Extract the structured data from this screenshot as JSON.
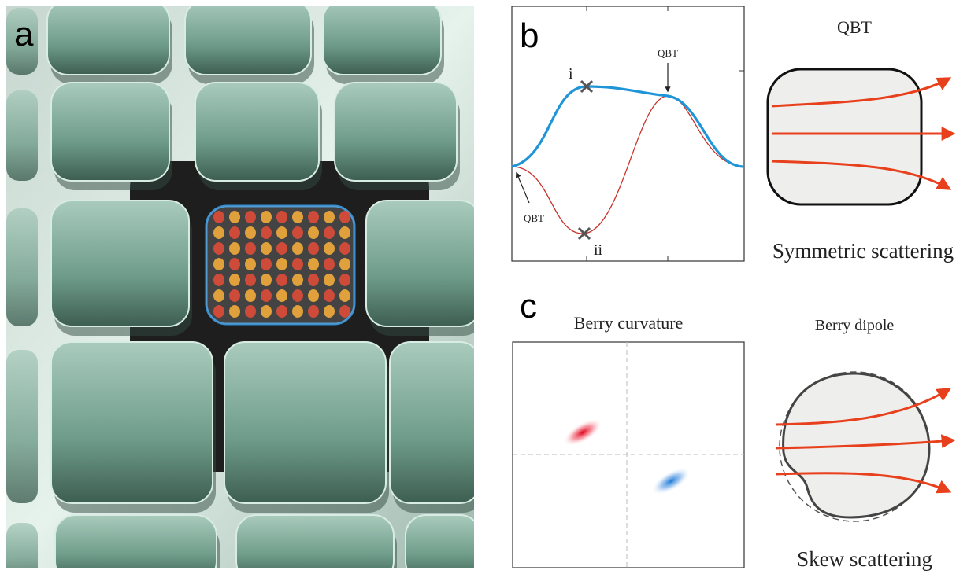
{
  "panel_a": {
    "label": "a"
  },
  "panel_b": {
    "label": "b",
    "point_labels": [
      "i",
      "ii"
    ],
    "qbt_labels": [
      "QBT",
      "QBT"
    ]
  },
  "symmetric": {
    "title": "QBT",
    "caption": "Symmetric scattering"
  },
  "panel_c": {
    "label": "c",
    "title": "Berry curvature"
  },
  "skew": {
    "title": "Berry dipole",
    "caption": "Skew scattering"
  }
}
